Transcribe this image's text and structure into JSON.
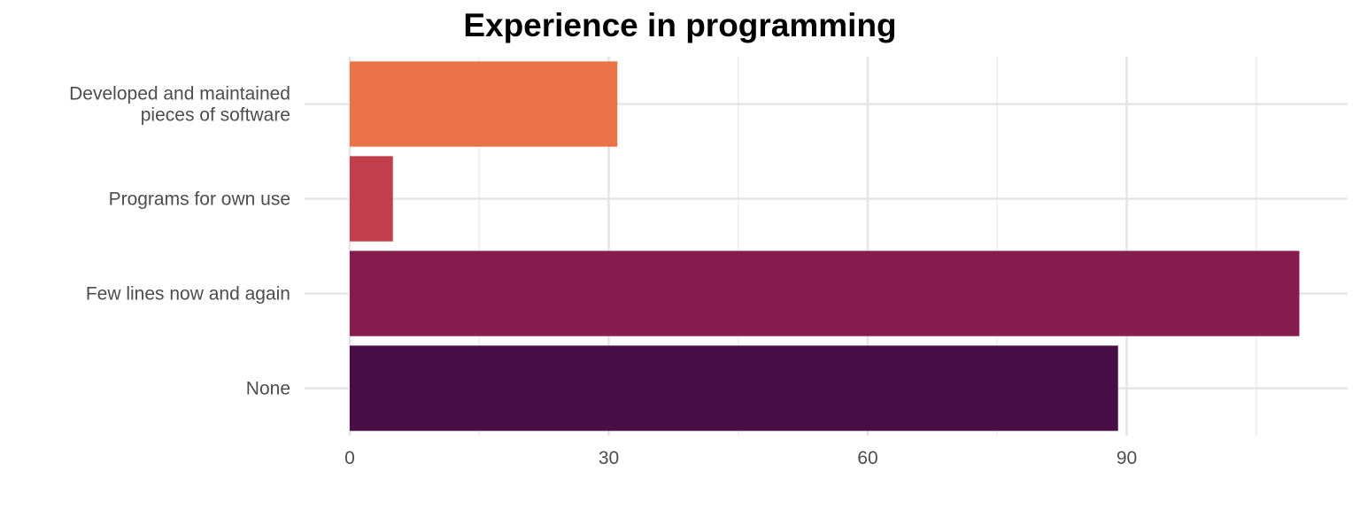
{
  "chart_data": {
    "type": "bar",
    "orientation": "horizontal",
    "title": "Experience in programming",
    "xlabel": "",
    "ylabel": "",
    "categories": [
      [
        "Developed and maintained",
        "pieces of software"
      ],
      [
        "Programs for own use"
      ],
      [
        "Few lines now and again"
      ],
      [
        "None"
      ]
    ],
    "values": [
      31,
      5,
      110,
      89
    ],
    "colors": [
      "#e97247",
      "#c13e4c",
      "#851c4d",
      "#4a0e47"
    ],
    "xlim": [
      0,
      115
    ],
    "xticks": [
      0,
      30,
      60,
      90
    ],
    "xtick_labels": [
      "0",
      "30",
      "60",
      "90"
    ],
    "grid": true,
    "legend": "none"
  }
}
